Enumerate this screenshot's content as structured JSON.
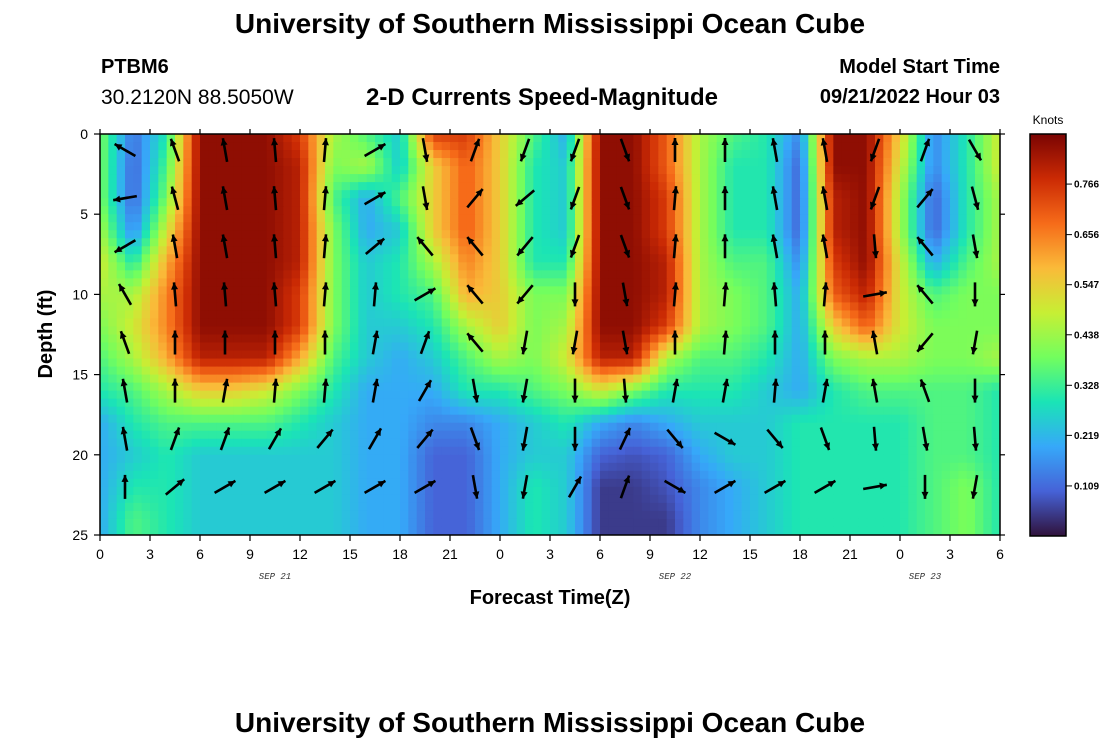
{
  "header": {
    "title": "University of Southern Mississippi Ocean Cube",
    "station_id": "PTBM6",
    "coordinates": "30.2120N  88.5050W",
    "model_start_label": "Model Start Time",
    "model_start_value": "09/21/2022 Hour 03"
  },
  "footer": {
    "title": "University of Southern Mississippi Ocean Cube"
  },
  "chart_data": {
    "type": "heatmap",
    "title": "2-D Currents Speed-Magnitude",
    "xlabel": "Forecast Time(Z)",
    "ylabel": "Depth (ft)",
    "x_tick_values": [
      0,
      3,
      6,
      9,
      12,
      15,
      18,
      21,
      24,
      27,
      30,
      33,
      36,
      39,
      42,
      45,
      48,
      51,
      54
    ],
    "x_tick_labels": [
      "0",
      "3",
      "6",
      "9",
      "12",
      "15",
      "18",
      "21",
      "0",
      "3",
      "6",
      "9",
      "12",
      "15",
      "18",
      "21",
      "0",
      "3",
      "6"
    ],
    "xlim": [
      0,
      54
    ],
    "date_labels": [
      {
        "x": 10.5,
        "text": "SEP 21"
      },
      {
        "x": 34.5,
        "text": "SEP 22"
      },
      {
        "x": 49.5,
        "text": "SEP 23"
      }
    ],
    "y_ticks": [
      0,
      5,
      10,
      15,
      20,
      25
    ],
    "ylim": [
      0,
      25
    ],
    "y_inverted": true,
    "colorbar": {
      "unit": "Knots",
      "range": [
        0.0,
        0.875
      ],
      "tick_labels": [
        "0.766",
        "0.656",
        "0.547",
        "0.438",
        "0.328",
        "0.219",
        "0.109"
      ],
      "colors": [
        "#30123b",
        "#4662d7",
        "#36a8f9",
        "#1ae4b6",
        "#72fe5e",
        "#c7ef34",
        "#faba39",
        "#f66b19",
        "#cb2a04",
        "#7a0403"
      ]
    },
    "speed_field": {
      "description_depths_ft": [
        0,
        2,
        4,
        6,
        8,
        10,
        12,
        14,
        16,
        18,
        20,
        22,
        24
      ],
      "hours": [
        0,
        2,
        4,
        6,
        8,
        10,
        12,
        14,
        16,
        18,
        20,
        22,
        24,
        26,
        28,
        30,
        32,
        34,
        36,
        38,
        40,
        42,
        44,
        46,
        48,
        50,
        52,
        54
      ],
      "values_knots": [
        [
          0.4,
          0.12,
          0.3,
          0.85,
          0.85,
          0.85,
          0.75,
          0.45,
          0.35,
          0.25,
          0.75,
          0.75,
          0.55,
          0.35,
          0.2,
          0.85,
          0.85,
          0.7,
          0.45,
          0.35,
          0.3,
          0.15,
          0.85,
          0.85,
          0.55,
          0.15,
          0.3,
          0.5
        ],
        [
          0.4,
          0.1,
          0.35,
          0.85,
          0.85,
          0.85,
          0.8,
          0.4,
          0.45,
          0.25,
          0.55,
          0.7,
          0.55,
          0.3,
          0.25,
          0.85,
          0.85,
          0.7,
          0.45,
          0.3,
          0.3,
          0.1,
          0.85,
          0.85,
          0.5,
          0.15,
          0.3,
          0.5
        ],
        [
          0.4,
          0.1,
          0.4,
          0.85,
          0.85,
          0.85,
          0.8,
          0.35,
          0.2,
          0.35,
          0.55,
          0.7,
          0.55,
          0.3,
          0.25,
          0.85,
          0.85,
          0.75,
          0.45,
          0.3,
          0.3,
          0.1,
          0.8,
          0.85,
          0.45,
          0.1,
          0.3,
          0.45
        ],
        [
          0.45,
          0.15,
          0.5,
          0.85,
          0.85,
          0.85,
          0.8,
          0.4,
          0.2,
          0.25,
          0.55,
          0.7,
          0.55,
          0.3,
          0.25,
          0.85,
          0.85,
          0.75,
          0.45,
          0.3,
          0.3,
          0.1,
          0.8,
          0.85,
          0.45,
          0.1,
          0.3,
          0.45
        ],
        [
          0.5,
          0.3,
          0.6,
          0.85,
          0.85,
          0.85,
          0.8,
          0.4,
          0.25,
          0.3,
          0.45,
          0.65,
          0.55,
          0.3,
          0.3,
          0.85,
          0.85,
          0.8,
          0.45,
          0.35,
          0.35,
          0.15,
          0.75,
          0.85,
          0.5,
          0.2,
          0.35,
          0.45
        ],
        [
          0.45,
          0.45,
          0.65,
          0.85,
          0.85,
          0.85,
          0.75,
          0.4,
          0.25,
          0.3,
          0.35,
          0.6,
          0.55,
          0.4,
          0.4,
          0.85,
          0.85,
          0.8,
          0.45,
          0.4,
          0.35,
          0.2,
          0.7,
          0.8,
          0.5,
          0.35,
          0.4,
          0.4
        ],
        [
          0.4,
          0.5,
          0.65,
          0.85,
          0.85,
          0.85,
          0.75,
          0.4,
          0.25,
          0.25,
          0.3,
          0.45,
          0.55,
          0.4,
          0.45,
          0.85,
          0.85,
          0.75,
          0.45,
          0.4,
          0.35,
          0.2,
          0.55,
          0.7,
          0.5,
          0.4,
          0.4,
          0.4
        ],
        [
          0.35,
          0.45,
          0.6,
          0.8,
          0.8,
          0.8,
          0.6,
          0.35,
          0.25,
          0.2,
          0.25,
          0.35,
          0.45,
          0.4,
          0.5,
          0.8,
          0.8,
          0.45,
          0.35,
          0.35,
          0.3,
          0.2,
          0.4,
          0.45,
          0.45,
          0.4,
          0.4,
          0.45
        ],
        [
          0.3,
          0.35,
          0.45,
          0.55,
          0.55,
          0.5,
          0.4,
          0.3,
          0.2,
          0.2,
          0.2,
          0.3,
          0.3,
          0.35,
          0.4,
          0.5,
          0.4,
          0.3,
          0.3,
          0.3,
          0.25,
          0.2,
          0.3,
          0.35,
          0.35,
          0.35,
          0.35,
          0.3
        ],
        [
          0.2,
          0.3,
          0.35,
          0.35,
          0.35,
          0.35,
          0.3,
          0.25,
          0.2,
          0.2,
          0.15,
          0.15,
          0.2,
          0.25,
          0.3,
          0.2,
          0.15,
          0.2,
          0.25,
          0.25,
          0.25,
          0.3,
          0.3,
          0.3,
          0.3,
          0.35,
          0.35,
          0.3
        ],
        [
          0.2,
          0.25,
          0.3,
          0.25,
          0.25,
          0.25,
          0.25,
          0.25,
          0.2,
          0.2,
          0.1,
          0.1,
          0.2,
          0.25,
          0.25,
          0.1,
          0.08,
          0.1,
          0.2,
          0.25,
          0.25,
          0.3,
          0.3,
          0.3,
          0.3,
          0.35,
          0.35,
          0.3
        ],
        [
          0.2,
          0.3,
          0.3,
          0.25,
          0.25,
          0.25,
          0.25,
          0.25,
          0.2,
          0.2,
          0.1,
          0.1,
          0.2,
          0.3,
          0.25,
          0.05,
          0.05,
          0.08,
          0.15,
          0.2,
          0.25,
          0.3,
          0.3,
          0.3,
          0.3,
          0.35,
          0.4,
          0.3
        ],
        [
          0.2,
          0.35,
          0.3,
          0.25,
          0.25,
          0.25,
          0.25,
          0.25,
          0.2,
          0.2,
          0.1,
          0.1,
          0.2,
          0.3,
          0.25,
          0.05,
          0.05,
          0.05,
          0.15,
          0.2,
          0.25,
          0.3,
          0.3,
          0.3,
          0.3,
          0.35,
          0.4,
          0.3
        ]
      ]
    },
    "vectors": {
      "description": "Arrow direction in degrees clockwise from up (north); shown on a 3-hour by ~2.7 ft grid",
      "hours": [
        1.5,
        4.5,
        7.5,
        10.5,
        13.5,
        16.5,
        19.5,
        22.5,
        25.5,
        28.5,
        31.5,
        34.5,
        37.5,
        40.5,
        43.5,
        46.5,
        49.5,
        52.5
      ],
      "depths_ft": [
        1,
        4,
        7,
        10,
        13,
        16,
        19,
        22
      ],
      "angles_deg": [
        [
          -60,
          -20,
          -10,
          -5,
          5,
          60,
          170,
          20,
          -160,
          200,
          160,
          0,
          0,
          -10,
          -10,
          200,
          20,
          150
        ],
        [
          -100,
          -15,
          -10,
          -5,
          5,
          60,
          170,
          40,
          -130,
          200,
          160,
          5,
          0,
          -10,
          -10,
          200,
          40,
          165
        ],
        [
          -120,
          -10,
          -10,
          -5,
          5,
          50,
          -40,
          -40,
          -140,
          200,
          160,
          5,
          0,
          -10,
          -10,
          175,
          -40,
          170
        ],
        [
          -30,
          -5,
          -5,
          -5,
          5,
          5,
          60,
          -40,
          -140,
          180,
          170,
          5,
          5,
          -5,
          5,
          80,
          -40,
          180
        ],
        [
          -20,
          0,
          0,
          0,
          0,
          10,
          20,
          -40,
          -170,
          190,
          170,
          0,
          5,
          0,
          0,
          -10,
          -140,
          190
        ],
        [
          -10,
          0,
          10,
          5,
          5,
          10,
          30,
          170,
          -170,
          180,
          175,
          10,
          10,
          5,
          10,
          -10,
          -20,
          180
        ],
        [
          -10,
          20,
          20,
          30,
          40,
          30,
          40,
          160,
          190,
          180,
          25,
          140,
          120,
          140,
          160,
          175,
          170,
          175
        ],
        [
          0,
          50,
          60,
          60,
          60,
          60,
          60,
          170,
          -170,
          30,
          20,
          120,
          60,
          60,
          60,
          80,
          180,
          -170
        ]
      ]
    }
  }
}
